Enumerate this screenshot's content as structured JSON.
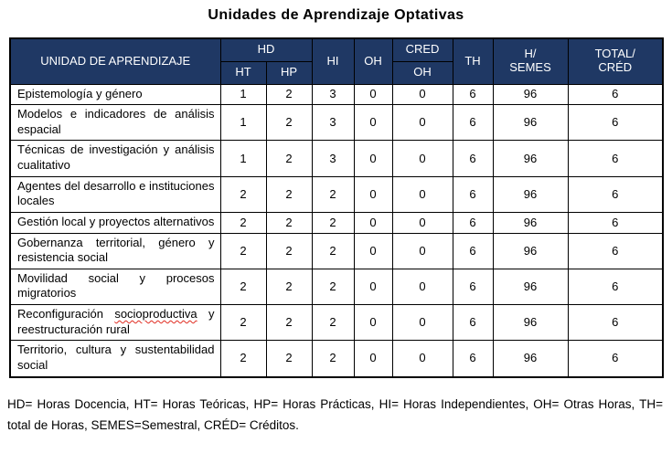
{
  "title": "Unidades de Aprendizaje Optativas",
  "colors": {
    "header_bg": "#1f3864",
    "header_text": "#ffffff",
    "border": "#000000",
    "squiggle": "#e02b20"
  },
  "table": {
    "header": {
      "unit": "UNIDAD DE APRENDIZAJE",
      "hd": "HD",
      "ht": "HT",
      "hp": "HP",
      "hi": "HI",
      "oh": "OH",
      "cred": "CRED",
      "cred_sub": "OH",
      "th": "TH",
      "h_semes_top": "H/",
      "h_semes_bottom": "SEMES",
      "total_top": "TOTAL/",
      "total_bottom": "CRÉD"
    },
    "rows": [
      {
        "name": "Epistemología y género",
        "values": [
          1,
          2,
          3,
          0,
          0,
          6,
          96,
          6
        ]
      },
      {
        "name": "Modelos e indicadores de análisis espacial",
        "values": [
          1,
          2,
          3,
          0,
          0,
          6,
          96,
          6
        ]
      },
      {
        "name": "Técnicas de investigación y análisis cualitativo",
        "values": [
          1,
          2,
          3,
          0,
          0,
          6,
          96,
          6
        ]
      },
      {
        "name": "Agentes del desarrollo e instituciones locales",
        "values": [
          2,
          2,
          2,
          0,
          0,
          6,
          96,
          6
        ]
      },
      {
        "name": "Gestión local y proyectos alternativos",
        "values": [
          2,
          2,
          2,
          0,
          0,
          6,
          96,
          6
        ]
      },
      {
        "name": "Gobernanza territorial, género y resistencia social",
        "values": [
          2,
          2,
          2,
          0,
          0,
          6,
          96,
          6
        ]
      },
      {
        "name": "Movilidad social y procesos migratorios",
        "values": [
          2,
          2,
          2,
          0,
          0,
          6,
          96,
          6
        ]
      },
      {
        "name": "Reconfiguración socioproductiva y reestructuración rural",
        "name_parts": [
          {
            "text": "Reconfiguración "
          },
          {
            "text": "socioproductiva",
            "misspelled": true
          },
          {
            "text": " y reestructuración rural"
          }
        ],
        "values": [
          2,
          2,
          2,
          0,
          0,
          6,
          96,
          6
        ]
      },
      {
        "name": "Territorio, cultura y sustentabilidad social",
        "values": [
          2,
          2,
          2,
          0,
          0,
          6,
          96,
          6
        ]
      }
    ]
  },
  "footnote": "HD= Horas Docencia, HT= Horas Teóricas, HP= Horas Prácticas, HI= Horas Independientes, OH= Otras Horas, TH= total de Horas, SEMES=Semestral, CRÉD= Créditos."
}
